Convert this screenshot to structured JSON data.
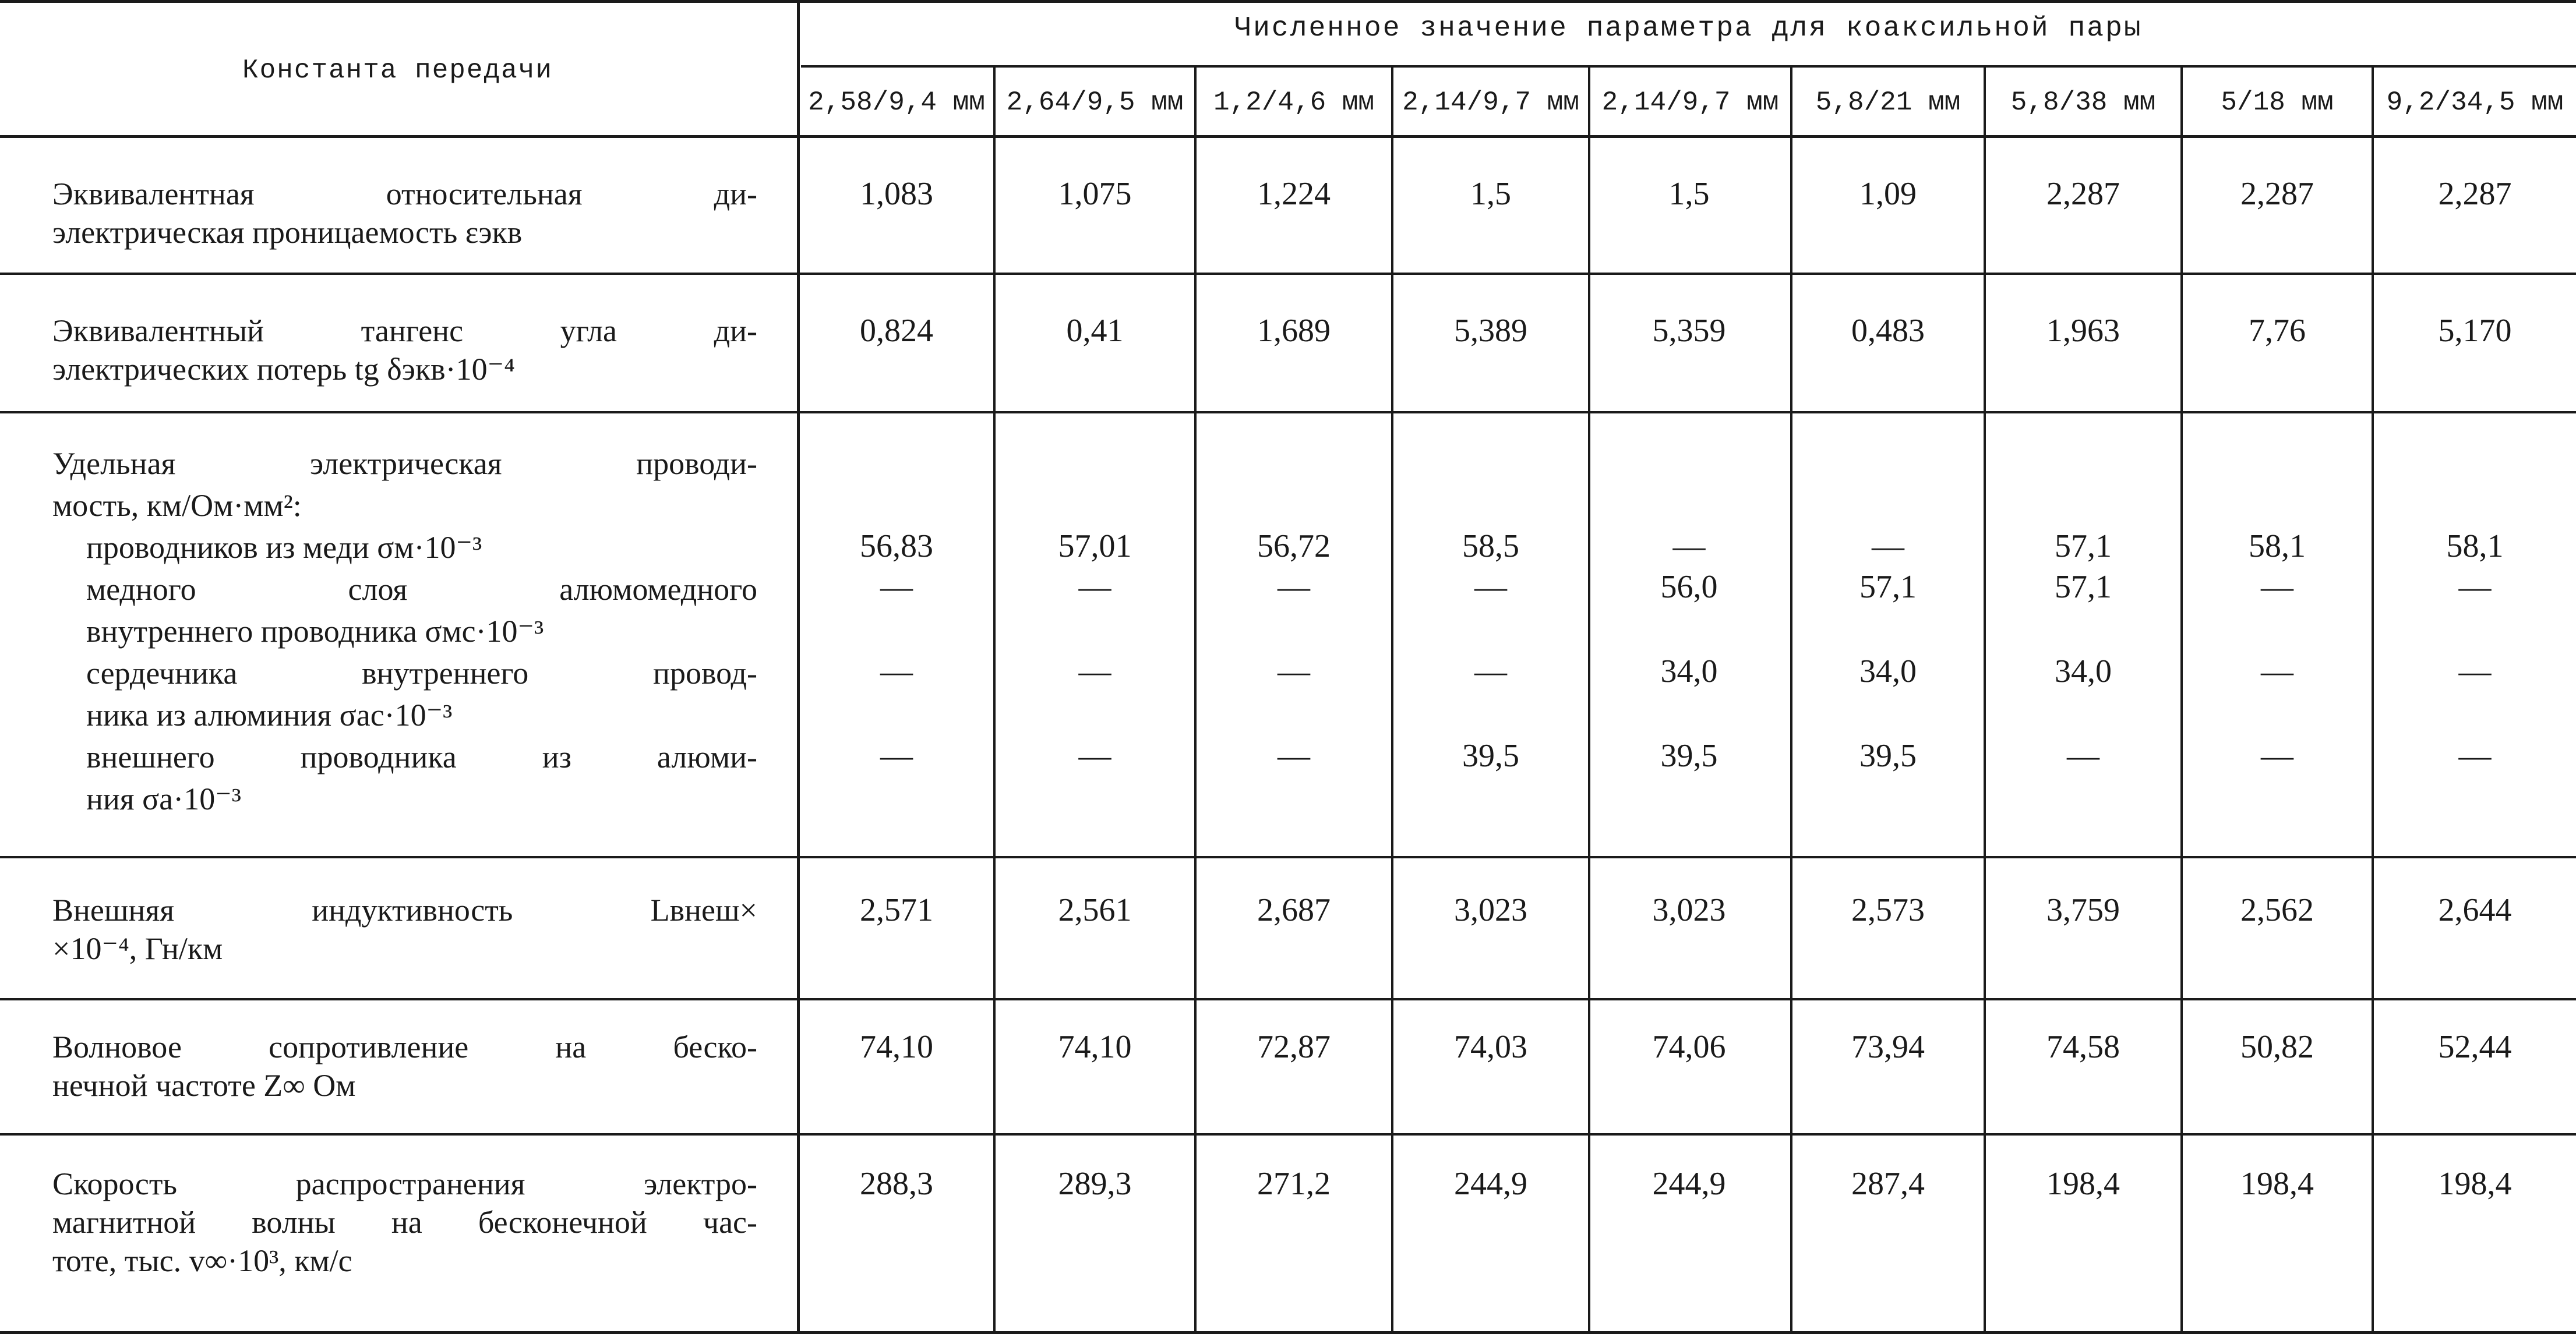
{
  "header": {
    "constant_label": "Константа передачи",
    "group_label": "Численное значение параметра для коаксильной пары",
    "columns": [
      "2,58/9,4 мм",
      "2,64/9,5 мм",
      "1,2/4,6 мм",
      "2,14/9,7 мм",
      "2,14/9,7 мм",
      "5,8/21 мм",
      "5,8/38 мм",
      "5/18 мм",
      "9,2/34,5 мм"
    ]
  },
  "rows": [
    {
      "label_lines": [
        "Эквивалентная относительная ди-",
        "электрическая проницаемость εэкв"
      ],
      "values": [
        "1,083",
        "1,075",
        "1,224",
        "1,5",
        "1,5",
        "1,09",
        "2,287",
        "2,287",
        "2,287"
      ]
    },
    {
      "label_lines": [
        "Эквивалентный тангенс угла ди-",
        "электрических потерь tg δэкв·10⁻⁴"
      ],
      "values": [
        "0,824",
        "0,41",
        "1,689",
        "5,389",
        "5,359",
        "0,483",
        "1,963",
        "7,76",
        "5,170"
      ]
    },
    {
      "label_lines": [
        "Удельная электрическая проводи-",
        "мость, км/Ом·мм²:",
        "проводников из меди σм·10⁻³",
        "медного слоя алюмомедного",
        "внутреннего проводника σмс·10⁻³",
        "сердечника внутреннего провод-",
        "ника из алюминия σас·10⁻³",
        "внешнего проводника из алюми-",
        "ния σа·10⁻³"
      ],
      "sub": [
        [
          "56,83",
          "57,01",
          "56,72",
          "58,5",
          "—",
          "—",
          "57,1",
          "58,1",
          "58,1"
        ],
        [
          "—",
          "—",
          "—",
          "—",
          "56,0",
          "57,1",
          "57,1",
          "—",
          "—"
        ],
        [
          "—",
          "—",
          "—",
          "—",
          "34,0",
          "34,0",
          "34,0",
          "—",
          "—"
        ],
        [
          "—",
          "—",
          "—",
          "39,5",
          "39,5",
          "39,5",
          "—",
          "—",
          "—"
        ]
      ]
    },
    {
      "label_lines": [
        "Внешняя индуктивность Lвнеш×",
        "×10⁻⁴, Гн/км"
      ],
      "values": [
        "2,571",
        "2,561",
        "2,687",
        "3,023",
        "3,023",
        "2,573",
        "3,759",
        "2,562",
        "2,644"
      ]
    },
    {
      "label_lines": [
        "Волновое сопротивление на беско-",
        "нечной частоте Z∞ Ом"
      ],
      "values": [
        "74,10",
        "74,10",
        "72,87",
        "74,03",
        "74,06",
        "73,94",
        "74,58",
        "50,82",
        "52,44"
      ]
    },
    {
      "label_lines": [
        "Скорость распространения электро-",
        "магнитной волны на бесконечной час-",
        "тоте, тыс. v∞·10³, км/с"
      ],
      "values": [
        "288,3",
        "289,3",
        "271,2",
        "244,9",
        "244,9",
        "287,4",
        "198,4",
        "198,4",
        "198,4"
      ]
    }
  ]
}
